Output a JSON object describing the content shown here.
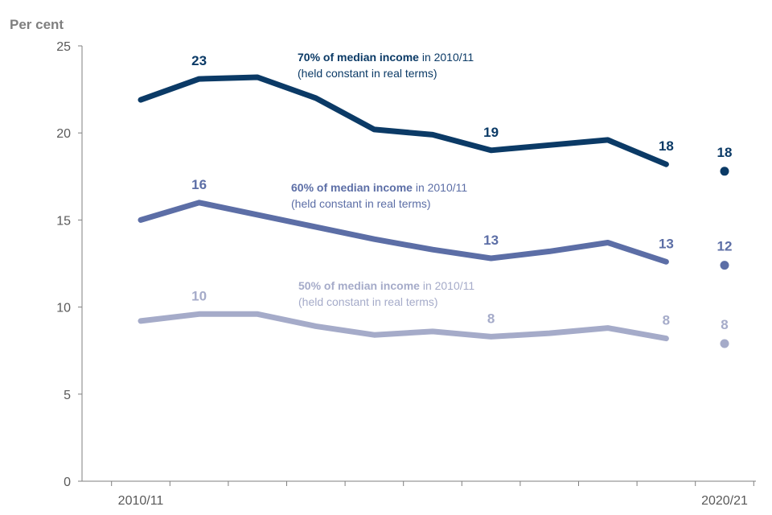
{
  "chart_data": {
    "type": "line",
    "ylabel": "Per cent",
    "ylim": [
      0,
      25
    ],
    "yticks": [
      "0",
      "5",
      "10",
      "15",
      "20",
      "25"
    ],
    "x_count": 11,
    "xtick_labels": [
      {
        "index": 0,
        "label": "2010/11"
      },
      {
        "index": 10,
        "label": "2020/21"
      }
    ],
    "series": [
      {
        "name": "70% of median income",
        "legend_bold": "70% of median income",
        "legend_rest": " in 2010/11",
        "legend_line2": "(held constant in real terms)",
        "color": "#0b3a66",
        "values": [
          21.9,
          23.1,
          23.2,
          22.0,
          20.2,
          19.9,
          19.0,
          19.3,
          19.6,
          18.2
        ],
        "final_point": 17.8,
        "labels": [
          {
            "index": 1,
            "text": "23"
          },
          {
            "index": 6,
            "text": "19"
          },
          {
            "index": 9,
            "text": "18"
          },
          {
            "index": 10,
            "text": "18"
          }
        ]
      },
      {
        "name": "60% of median income",
        "legend_bold": "60% of median income",
        "legend_rest": " in 2010/11",
        "legend_line2": "(held constant in real terms)",
        "color": "#5c6ea6",
        "values": [
          15.0,
          16.0,
          15.3,
          14.6,
          13.9,
          13.3,
          12.8,
          13.2,
          13.7,
          12.6
        ],
        "final_point": 12.4,
        "labels": [
          {
            "index": 1,
            "text": "16"
          },
          {
            "index": 6,
            "text": "13"
          },
          {
            "index": 9,
            "text": "13"
          },
          {
            "index": 10,
            "text": "12"
          }
        ]
      },
      {
        "name": "50% of median income",
        "legend_bold": "50% of median income",
        "legend_rest": " in 2010/11",
        "legend_line2": "(held constant in real terms)",
        "color": "#a5abc9",
        "values": [
          9.2,
          9.6,
          9.6,
          8.9,
          8.4,
          8.6,
          8.3,
          8.5,
          8.8,
          8.2
        ],
        "final_point": 7.9,
        "labels": [
          {
            "index": 1,
            "text": "10"
          },
          {
            "index": 6,
            "text": "8"
          },
          {
            "index": 9,
            "text": "8"
          },
          {
            "index": 10,
            "text": "8"
          }
        ]
      }
    ]
  }
}
